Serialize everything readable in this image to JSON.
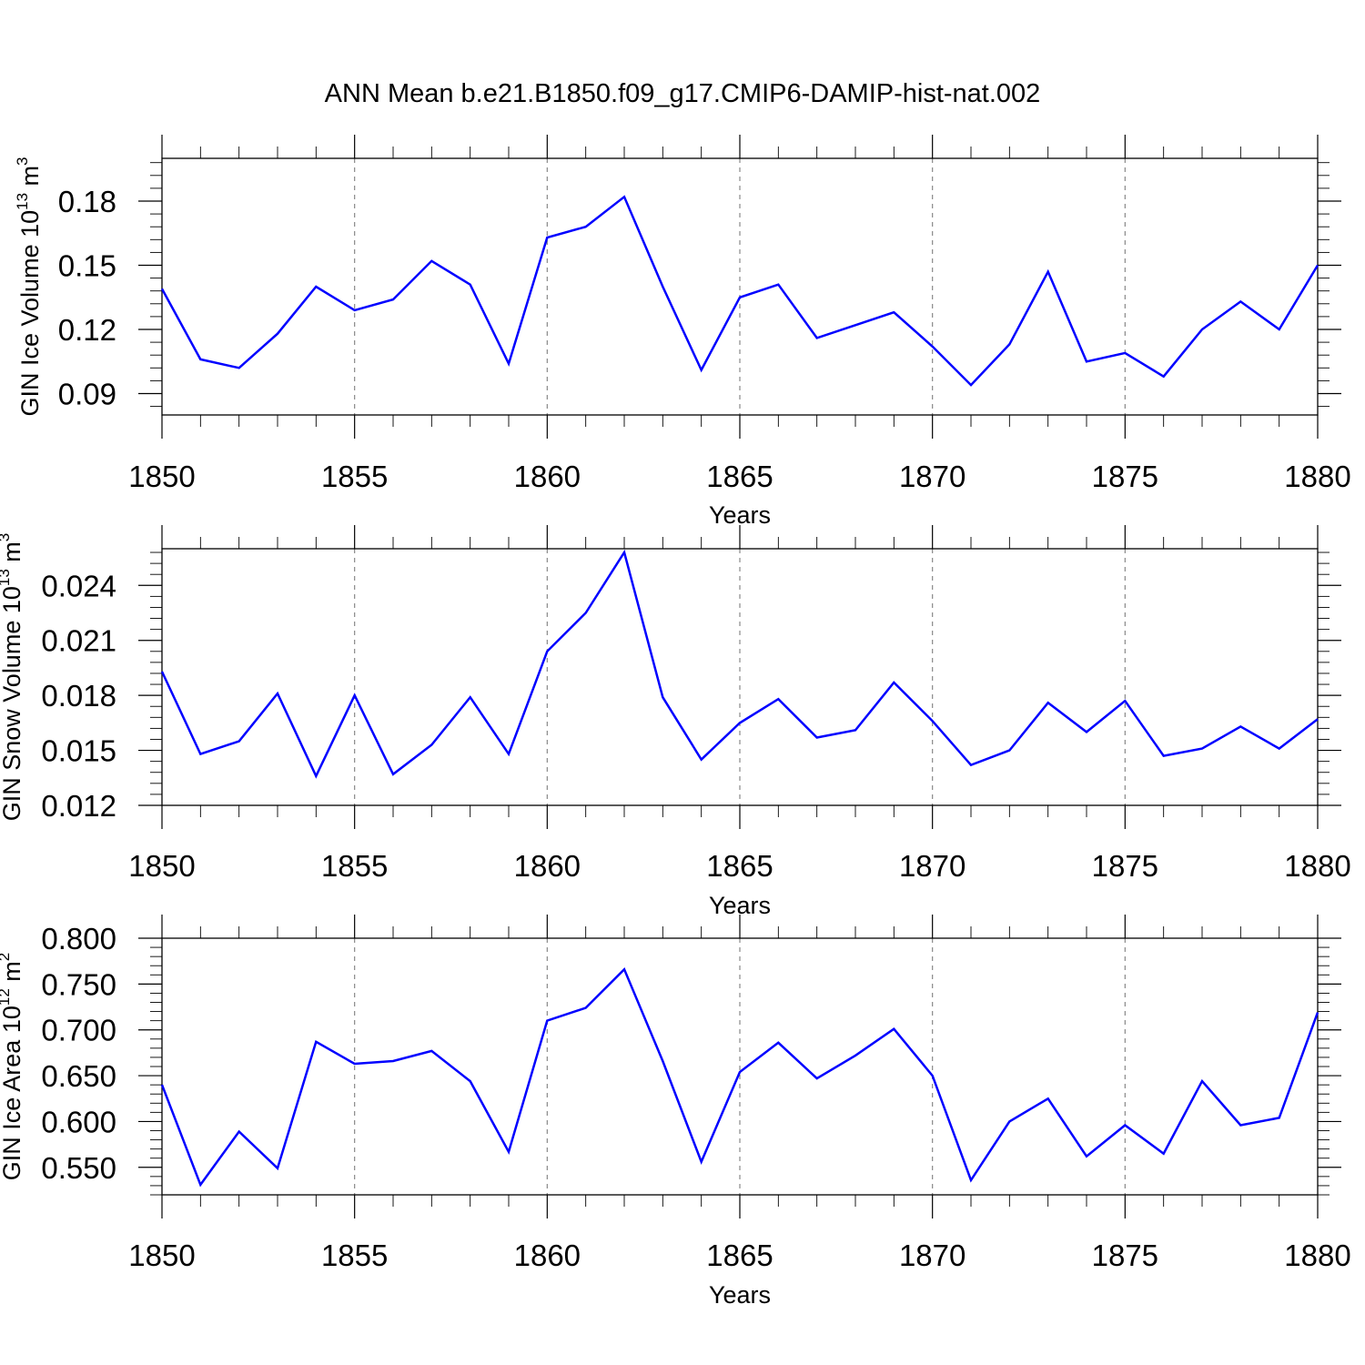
{
  "title": "ANN Mean b.e21.B1850.f09_g17.CMIP6-DAMIP-hist-nat.002",
  "colors": {
    "line": "#0000ff",
    "frame": "#000000",
    "grid": "#888888"
  },
  "chart_data": [
    {
      "type": "line",
      "ylabel_text": "GIN Ice Volume 10",
      "ylabel_exp": "13",
      "ylabel_unit": "m",
      "ylabel_unit_exp": "3",
      "xlabel": "Years",
      "xlim": [
        1850,
        1880
      ],
      "ylim": [
        0.08,
        0.2
      ],
      "x_ticks": [
        1850,
        1855,
        1860,
        1865,
        1870,
        1875,
        1880
      ],
      "y_ticks": [
        "0.09",
        "0.12",
        "0.15",
        "0.18"
      ],
      "grid": "vertical dashed at x ticks",
      "x": [
        1850,
        1851,
        1852,
        1853,
        1854,
        1855,
        1856,
        1857,
        1858,
        1859,
        1860,
        1861,
        1862,
        1863,
        1864,
        1865,
        1866,
        1867,
        1868,
        1869,
        1870,
        1871,
        1872,
        1873,
        1874,
        1875,
        1876,
        1877,
        1878,
        1879,
        1880
      ],
      "values": [
        0.139,
        0.106,
        0.102,
        0.118,
        0.14,
        0.129,
        0.134,
        0.152,
        0.141,
        0.104,
        0.163,
        0.168,
        0.182,
        0.14,
        0.101,
        0.135,
        0.141,
        0.116,
        0.122,
        0.128,
        0.112,
        0.094,
        0.113,
        0.147,
        0.105,
        0.109,
        0.098,
        0.12,
        0.133,
        0.12,
        0.15
      ]
    },
    {
      "type": "line",
      "ylabel_text": "GIN Snow Volume 10",
      "ylabel_exp": "13",
      "ylabel_unit": "m",
      "ylabel_unit_exp": "3",
      "xlabel": "Years",
      "xlim": [
        1850,
        1880
      ],
      "ylim": [
        0.012,
        0.026
      ],
      "x_ticks": [
        1850,
        1855,
        1860,
        1865,
        1870,
        1875,
        1880
      ],
      "y_ticks": [
        "0.012",
        "0.015",
        "0.018",
        "0.021",
        "0.024"
      ],
      "grid": "vertical dashed at x ticks",
      "x": [
        1850,
        1851,
        1852,
        1853,
        1854,
        1855,
        1856,
        1857,
        1858,
        1859,
        1860,
        1861,
        1862,
        1863,
        1864,
        1865,
        1866,
        1867,
        1868,
        1869,
        1870,
        1871,
        1872,
        1873,
        1874,
        1875,
        1876,
        1877,
        1878,
        1879,
        1880
      ],
      "values": [
        0.0193,
        0.0148,
        0.0155,
        0.0181,
        0.0136,
        0.018,
        0.0137,
        0.0153,
        0.0179,
        0.0148,
        0.0204,
        0.0225,
        0.0258,
        0.0179,
        0.0145,
        0.0165,
        0.0178,
        0.0157,
        0.0161,
        0.0187,
        0.0166,
        0.0142,
        0.015,
        0.0176,
        0.016,
        0.0177,
        0.0147,
        0.0151,
        0.0163,
        0.0151,
        0.0167
      ]
    },
    {
      "type": "line",
      "ylabel_text": "GIN Ice Area 10",
      "ylabel_exp": "12",
      "ylabel_unit": "m",
      "ylabel_unit_exp": "2",
      "xlabel": "Years",
      "xlim": [
        1850,
        1880
      ],
      "ylim": [
        0.52,
        0.8
      ],
      "x_ticks": [
        1850,
        1855,
        1860,
        1865,
        1870,
        1875,
        1880
      ],
      "y_ticks": [
        "0.550",
        "0.600",
        "0.650",
        "0.700",
        "0.750",
        "0.800"
      ],
      "grid": "vertical dashed at x ticks",
      "x": [
        1850,
        1851,
        1852,
        1853,
        1854,
        1855,
        1856,
        1857,
        1858,
        1859,
        1860,
        1861,
        1862,
        1863,
        1864,
        1865,
        1866,
        1867,
        1868,
        1869,
        1870,
        1871,
        1872,
        1873,
        1874,
        1875,
        1876,
        1877,
        1878,
        1879,
        1880
      ],
      "values": [
        0.64,
        0.531,
        0.589,
        0.549,
        0.687,
        0.663,
        0.666,
        0.677,
        0.644,
        0.567,
        0.71,
        0.724,
        0.766,
        0.666,
        0.556,
        0.654,
        0.686,
        0.647,
        0.672,
        0.701,
        0.65,
        0.536,
        0.6,
        0.625,
        0.562,
        0.596,
        0.565,
        0.644,
        0.596,
        0.604,
        0.719
      ]
    }
  ]
}
